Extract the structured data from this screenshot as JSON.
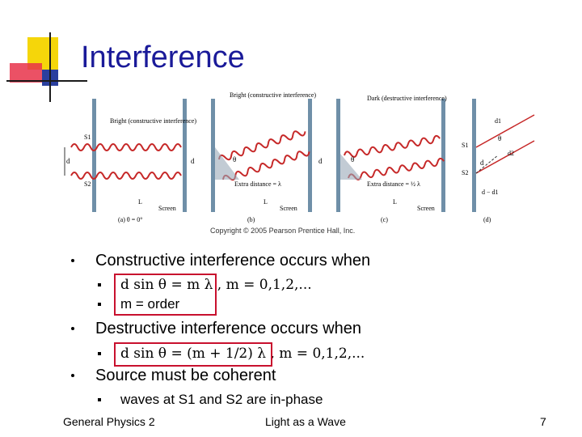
{
  "title": "Interference",
  "figure": {
    "panels": [
      {
        "bright_label": "Bright (constructive interference)",
        "d": "d",
        "s1": "S1",
        "s2": "S2",
        "L": "L",
        "screen": "Screen",
        "caption": "(a) θ = 0°"
      },
      {
        "bright_label": "Bright (constructive interference)",
        "d": "d",
        "theta": "θ",
        "extra": "Extra distance = λ",
        "L": "L",
        "screen": "Screen",
        "caption": "(b)"
      },
      {
        "dark_label": "Dark (destructive interference)",
        "d": "d",
        "theta": "θ",
        "extra": "Extra distance = ½ λ",
        "L": "L",
        "screen": "Screen",
        "caption": "(c)"
      },
      {
        "s1": "S1",
        "s2": "S2",
        "d": "d",
        "d1": "d1",
        "d2": "d2",
        "theta": "θ",
        "diff": "d − d1",
        "caption": "(d)"
      }
    ],
    "copyright": "Copyright © 2005 Pearson Prentice Hall, Inc."
  },
  "bullets": {
    "b1": "Constructive interference occurs when",
    "b1_sub1": "d sin θ = m λ , m = 0,1,2,...",
    "b1_sub2": "m = order",
    "b2": "Destructive interference occurs when",
    "b2_sub1": "d sin θ = (m + 1/2) λ , m = 0,1,2,...",
    "b3": "Source must be coherent",
    "b3_sub1": "waves at S1 and S2 are in-phase"
  },
  "footer": {
    "left": "General Physics 2",
    "center": "Light as a Wave",
    "page": "7"
  },
  "colors": {
    "title": "#1a1a99",
    "highlight": "#c8102e",
    "logo_yellow": "#f5d60a",
    "logo_red": "#e8324a",
    "logo_blue": "#2a3f9e",
    "wave": "#c62828"
  }
}
